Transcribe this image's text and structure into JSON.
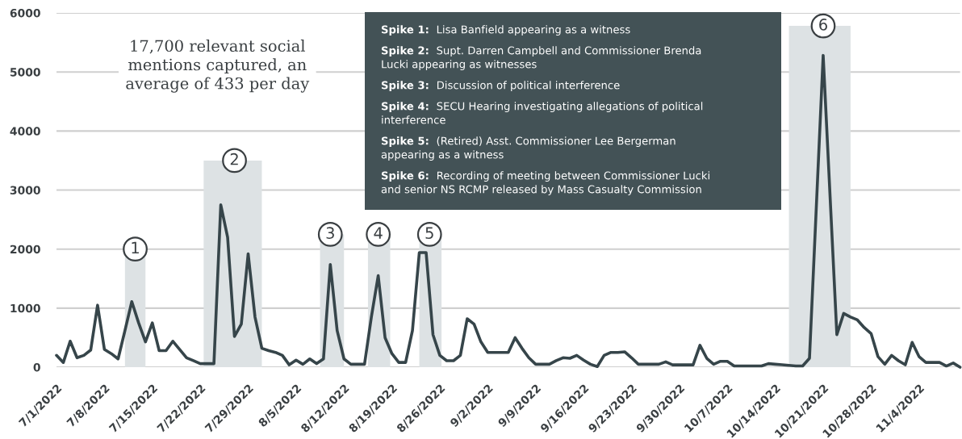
{
  "chart_data": {
    "type": "line",
    "x": [
      "2022-07-01",
      "2022-07-02",
      "2022-07-03",
      "2022-07-04",
      "2022-07-05",
      "2022-07-06",
      "2022-07-07",
      "2022-07-08",
      "2022-07-09",
      "2022-07-10",
      "2022-07-11",
      "2022-07-12",
      "2022-07-13",
      "2022-07-14",
      "2022-07-15",
      "2022-07-16",
      "2022-07-17",
      "2022-07-18",
      "2022-07-19",
      "2022-07-20",
      "2022-07-21",
      "2022-07-22",
      "2022-07-23",
      "2022-07-24",
      "2022-07-25",
      "2022-07-26",
      "2022-07-27",
      "2022-07-28",
      "2022-07-29",
      "2022-07-30",
      "2022-07-31",
      "2022-08-01",
      "2022-08-02",
      "2022-08-03",
      "2022-08-04",
      "2022-08-05",
      "2022-08-06",
      "2022-08-07",
      "2022-08-08",
      "2022-08-09",
      "2022-08-10",
      "2022-08-11",
      "2022-08-12",
      "2022-08-13",
      "2022-08-14",
      "2022-08-15",
      "2022-08-16",
      "2022-08-17",
      "2022-08-18",
      "2022-08-19",
      "2022-08-20",
      "2022-08-21",
      "2022-08-22",
      "2022-08-23",
      "2022-08-24",
      "2022-08-25",
      "2022-08-26",
      "2022-08-27",
      "2022-08-28",
      "2022-08-29",
      "2022-08-30",
      "2022-08-31",
      "2022-09-01",
      "2022-09-02",
      "2022-09-03",
      "2022-09-04",
      "2022-09-05",
      "2022-09-06",
      "2022-09-07",
      "2022-09-08",
      "2022-09-09",
      "2022-09-10",
      "2022-09-11",
      "2022-09-12",
      "2022-09-13",
      "2022-09-14",
      "2022-09-15",
      "2022-09-16",
      "2022-09-17",
      "2022-09-18",
      "2022-09-19",
      "2022-09-20",
      "2022-09-21",
      "2022-09-22",
      "2022-09-23",
      "2022-09-24",
      "2022-09-25",
      "2022-09-26",
      "2022-09-27",
      "2022-09-28",
      "2022-09-29",
      "2022-09-30",
      "2022-10-01",
      "2022-10-02",
      "2022-10-03",
      "2022-10-04",
      "2022-10-05",
      "2022-10-06",
      "2022-10-07",
      "2022-10-08",
      "2022-10-09",
      "2022-10-10",
      "2022-10-11",
      "2022-10-12",
      "2022-10-13",
      "2022-10-14",
      "2022-10-15",
      "2022-10-16",
      "2022-10-17",
      "2022-10-18",
      "2022-10-19",
      "2022-10-21",
      "2022-10-23",
      "2022-10-24",
      "2022-10-25",
      "2022-10-26",
      "2022-10-27",
      "2022-10-28",
      "2022-10-29",
      "2022-10-30",
      "2022-10-31",
      "2022-11-01",
      "2022-11-02",
      "2022-11-03",
      "2022-11-04",
      "2022-11-05",
      "2022-11-06",
      "2022-11-07",
      "2022-11-08",
      "2022-11-09",
      "2022-11-10"
    ],
    "series": [
      {
        "color": "#36454a",
        "values": [
          200,
          80,
          440,
          160,
          200,
          290,
          1050,
          300,
          230,
          140,
          620,
          1110,
          750,
          430,
          750,
          280,
          280,
          440,
          300,
          160,
          110,
          60,
          60,
          60,
          2750,
          2200,
          520,
          730,
          1920,
          850,
          320,
          280,
          250,
          200,
          40,
          120,
          50,
          140,
          60,
          140,
          1740,
          620,
          140,
          50,
          50,
          50,
          850,
          1550,
          500,
          230,
          80,
          80,
          620,
          1940,
          1940,
          550,
          200,
          110,
          110,
          200,
          820,
          730,
          430,
          250,
          250,
          250,
          250,
          500,
          320,
          160,
          50,
          50,
          50,
          110,
          160,
          150,
          200,
          120,
          50,
          10,
          200,
          250,
          250,
          260,
          160,
          50,
          50,
          50,
          50,
          90,
          40,
          40,
          40,
          40,
          370,
          150,
          50,
          100,
          100,
          20,
          20,
          20,
          20,
          20,
          60,
          50,
          40,
          30,
          20,
          20,
          150,
          5280,
          550,
          910,
          850,
          800,
          670,
          570,
          180,
          50,
          200,
          110,
          40,
          420,
          180,
          80,
          80,
          80,
          20,
          70,
          0
        ]
      }
    ],
    "xlim": [
      "2022-07-01",
      "2022-11-10"
    ],
    "ylim": [
      0,
      6000
    ],
    "yticks": [
      0,
      1000,
      2000,
      3000,
      4000,
      5000,
      6000
    ],
    "xticks": [
      {
        "value": "2022-07-01",
        "label": "7/1/2022"
      },
      {
        "value": "2022-07-08",
        "label": "7/8/2022"
      },
      {
        "value": "2022-07-15",
        "label": "7/15/2022"
      },
      {
        "value": "2022-07-22",
        "label": "7/22/2022"
      },
      {
        "value": "2022-07-29",
        "label": "7/29/2022"
      },
      {
        "value": "2022-08-05",
        "label": "8/5/2022"
      },
      {
        "value": "2022-08-12",
        "label": "8/12/2022"
      },
      {
        "value": "2022-08-19",
        "label": "8/19/2022"
      },
      {
        "value": "2022-08-26",
        "label": "8/26/2022"
      },
      {
        "value": "2022-09-02",
        "label": "9/2/2022"
      },
      {
        "value": "2022-09-09",
        "label": "9/9/2022"
      },
      {
        "value": "2022-09-16",
        "label": "9/16/2022"
      },
      {
        "value": "2022-09-23",
        "label": "9/23/2022"
      },
      {
        "value": "2022-09-30",
        "label": "9/30/2022"
      },
      {
        "value": "2022-10-07",
        "label": "10/7/2022"
      },
      {
        "value": "2022-10-14",
        "label": "10/14/2022"
      },
      {
        "value": "2022-10-21",
        "label": "10/21/2022"
      },
      {
        "value": "2022-10-28",
        "label": "10/28/2022"
      },
      {
        "value": "2022-11-04",
        "label": "11/4/2022"
      }
    ],
    "grid": "y",
    "bands": [
      {
        "axis": "x",
        "from": "2022-07-11",
        "to": "2022-07-14",
        "color": "#dde2e4"
      },
      {
        "axis": "x",
        "from": "2022-07-22T12:00",
        "to": "2022-07-31",
        "color": "#dde2e4"
      },
      {
        "axis": "x",
        "from": "2022-08-08T12:00",
        "to": "2022-08-12",
        "color": "#dde2e4"
      },
      {
        "axis": "x",
        "from": "2022-08-15T12:00",
        "to": "2022-08-18T18:00",
        "color": "#dde2e4"
      },
      {
        "axis": "x",
        "from": "2022-08-23",
        "to": "2022-08-26T06:00",
        "color": "#dde2e4"
      },
      {
        "axis": "x",
        "from": "2022-10-16",
        "to": "2022-10-25",
        "color": "#dde2e4"
      }
    ],
    "annotations": [
      "17,700 relevant social\nmentions captured, an\naverage of 433 per day",
      "Spike 1: Lisa Banfield appearing as a witness",
      "Spike 2: Supt. Darren Campbell and Commissioner Brenda\nLucki appearing as witnesses",
      "Spike 3: Discussion of political interference",
      "Spike 4: SECU Hearing investigating allegations of political\ninterference",
      "Spike 5: (Retired) Asst. Commissioner Lee Bergerman\nappearing as a witness",
      "Spike 6: Recording of meeting between Commissioner Lucki\nand senior NS RCMP released by Mass Casualty Commission",
      {
        "text": "1",
        "x": "2022-07-12T12:00",
        "y": 2000
      },
      {
        "text": "2",
        "x": "2022-07-27",
        "y": 3500
      },
      {
        "text": "3",
        "x": "2022-08-10",
        "y": 2250
      },
      {
        "text": "4",
        "x": "2022-08-17",
        "y": 2250
      },
      {
        "text": "5",
        "x": "2022-08-24T12:00",
        "y": 2250
      },
      {
        "text": "6",
        "x": "2022-10-21",
        "y": 5780
      }
    ]
  }
}
